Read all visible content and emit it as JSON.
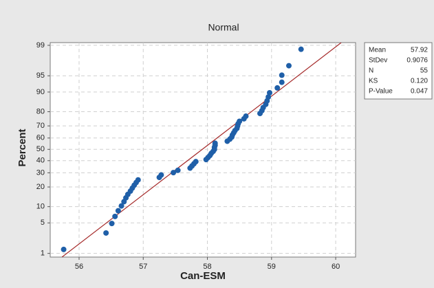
{
  "chart_data": {
    "type": "probability",
    "title": "Normal",
    "x_label": "Can-ESM",
    "y_label": "Percent",
    "xlim": [
      55.55,
      60.31
    ],
    "xticks": [
      56,
      57,
      58,
      59,
      60
    ],
    "ylim": [
      0.8,
      99.15
    ],
    "yticks": [
      1,
      5,
      10,
      20,
      30,
      40,
      50,
      60,
      70,
      80,
      90,
      95,
      99
    ],
    "grid": true,
    "point_color": "#1f5fa8",
    "line_color": "#a52a2a",
    "x": [
      55.76,
      56.42,
      56.51,
      56.56,
      56.61,
      56.66,
      56.7,
      56.73,
      56.76,
      56.8,
      56.83,
      56.86,
      56.89,
      56.92,
      57.25,
      57.28,
      57.47,
      57.54,
      57.73,
      57.76,
      57.79,
      57.82,
      57.98,
      58.01,
      58.04,
      58.06,
      58.09,
      58.11,
      58.11,
      58.12,
      58.12,
      58.31,
      58.35,
      58.38,
      58.39,
      58.41,
      58.43,
      58.46,
      58.47,
      58.48,
      58.5,
      58.57,
      58.6,
      58.82,
      58.85,
      58.87,
      58.91,
      58.93,
      58.95,
      58.97,
      59.09,
      59.16,
      59.16,
      59.27,
      59.46
    ],
    "values": [
      1.26,
      3.07,
      4.87,
      6.68,
      8.48,
      10.29,
      12.09,
      13.9,
      15.7,
      17.51,
      19.31,
      21.12,
      22.92,
      24.73,
      26.53,
      28.34,
      30.14,
      31.95,
      33.75,
      35.56,
      37.36,
      39.17,
      40.97,
      42.78,
      44.58,
      46.39,
      48.19,
      50.0,
      51.81,
      53.61,
      55.42,
      57.22,
      59.03,
      60.83,
      62.64,
      64.44,
      66.25,
      68.05,
      69.86,
      71.66,
      73.47,
      75.27,
      77.08,
      78.88,
      80.69,
      82.49,
      84.3,
      86.1,
      87.91,
      89.71,
      91.52,
      93.32,
      95.13,
      96.93,
      98.74
    ],
    "stats": {
      "labels": [
        "Mean",
        "StDev",
        "N",
        "KS",
        "P-Value"
      ],
      "values": [
        57.92,
        0.9076,
        55,
        0.12,
        0.047
      ],
      "value_labels": [
        "57.92",
        "0.9076",
        "55",
        "0.120",
        "0.047"
      ]
    }
  }
}
